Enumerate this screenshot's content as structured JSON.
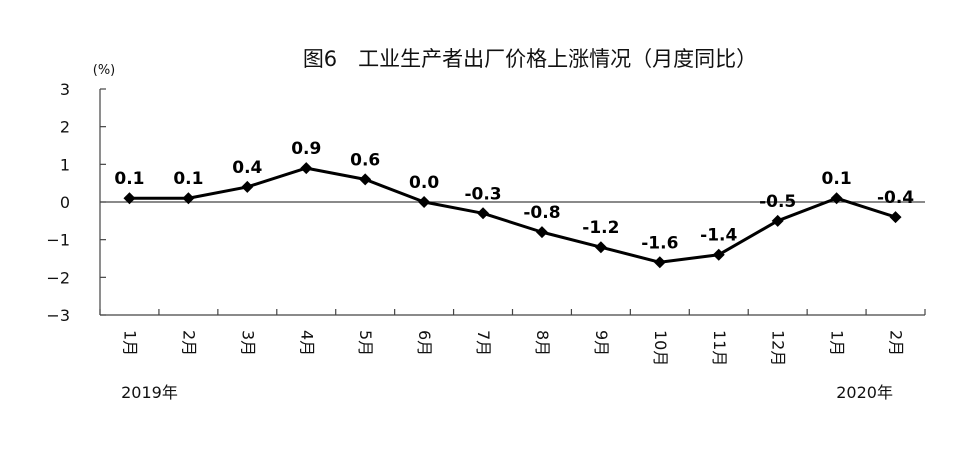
{
  "chart_data": {
    "type": "line",
    "title": "图6　工业生产者出厂价格上涨情况（月度同比）",
    "unit": "(%)",
    "xlabel": "",
    "ylabel": "",
    "ylim": [
      -3,
      3
    ],
    "yticks": [
      "3",
      "2",
      "1",
      "0",
      "−1",
      "−2",
      "−3"
    ],
    "ytick_values": [
      3,
      2,
      1,
      0,
      -1,
      -2,
      -3
    ],
    "categories": [
      "1月",
      "2月",
      "3月",
      "4月",
      "5月",
      "6月",
      "7月",
      "8月",
      "9月",
      "10月",
      "11月",
      "12月",
      "1月",
      "2月"
    ],
    "year_labels": [
      {
        "text": "2019年",
        "category_index": 0
      },
      {
        "text": "2020年",
        "category_index": 12
      }
    ],
    "series": [
      {
        "values": [
          0.1,
          0.1,
          0.4,
          0.9,
          0.6,
          0.0,
          -0.3,
          -0.8,
          -1.2,
          -1.6,
          -1.4,
          -0.5,
          0.1,
          -0.4
        ],
        "labels": [
          "0.1",
          "0.1",
          "0.4",
          "0.9",
          "0.6",
          "0.0",
          "-0.3",
          "-0.8",
          "-1.2",
          "-1.6",
          "-1.4",
          "-0.5",
          "0.1",
          "-0.4"
        ],
        "color": "#000000",
        "marker": "diamond"
      }
    ],
    "grid": false,
    "legend": "none"
  }
}
